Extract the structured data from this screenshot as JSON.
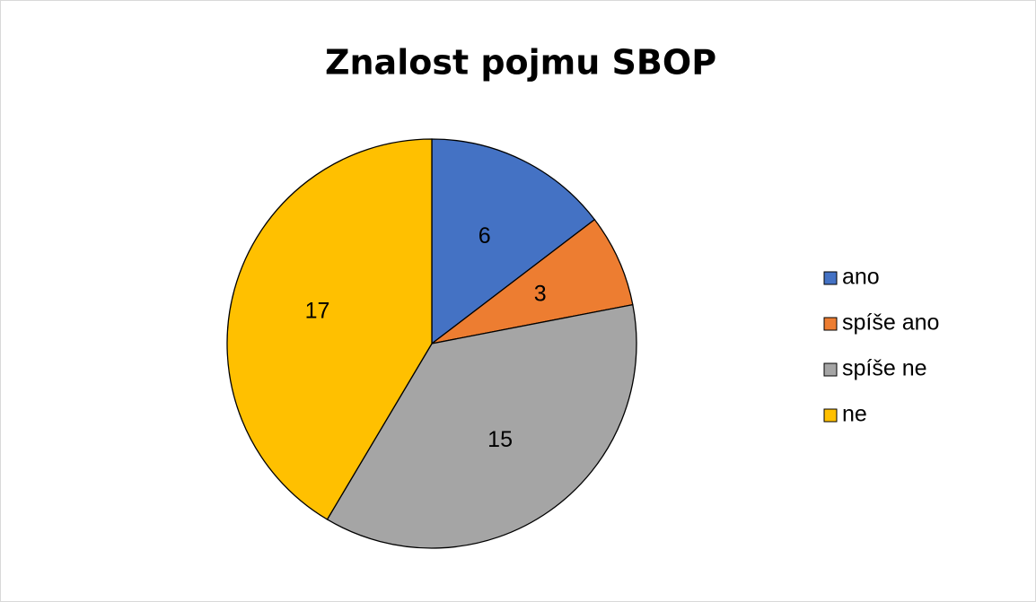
{
  "chart_data": {
    "type": "pie",
    "title": "Znalost pojmu SBOP",
    "categories": [
      "ano",
      "spíše ano",
      "spíše ne",
      "ne"
    ],
    "values": [
      6,
      3,
      15,
      17
    ],
    "colors": [
      "#4472c4",
      "#ed7d31",
      "#a5a5a5",
      "#ffc000"
    ],
    "legend": "right"
  }
}
